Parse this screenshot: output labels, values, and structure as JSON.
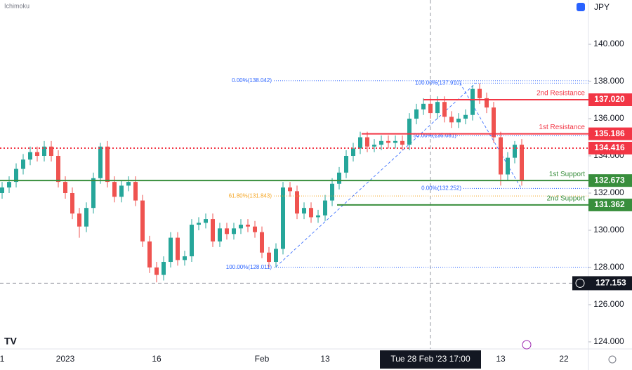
{
  "chart_data": {
    "type": "candlestick",
    "indicator": "Ichimoku",
    "symbol": "JPY",
    "up_color": "#26a69a",
    "down_color": "#ef5350",
    "ylim": [
      123.62,
      142.38
    ],
    "yticks": [
      {
        "value": 124,
        "label": "124.000"
      },
      {
        "value": 126,
        "label": "126.000"
      },
      {
        "value": 128,
        "label": "128.000"
      },
      {
        "value": 130,
        "label": "130.000"
      },
      {
        "value": 132,
        "label": "132.000"
      },
      {
        "value": 134,
        "label": "134.000"
      },
      {
        "value": 136,
        "label": "136.000"
      },
      {
        "value": 138,
        "label": "138.000"
      },
      {
        "value": 140,
        "label": "140.000"
      }
    ],
    "categories": [
      "1",
      null,
      null,
      null,
      null,
      null,
      null,
      null,
      null,
      "2023",
      null,
      null,
      null,
      null,
      null,
      null,
      null,
      null,
      null,
      null,
      null,
      null,
      "16",
      null,
      null,
      null,
      null,
      null,
      null,
      null,
      null,
      null,
      null,
      null,
      null,
      null,
      null,
      "Feb",
      null,
      null,
      null,
      null,
      null,
      null,
      null,
      null,
      "13",
      null,
      null,
      null,
      null,
      null,
      null,
      null,
      null,
      null,
      null,
      null,
      null,
      null,
      null,
      "Tue 28 Feb '23  17:00",
      null,
      null,
      null,
      null,
      null,
      null,
      null,
      null,
      null,
      "13",
      null,
      null,
      null,
      null,
      null,
      null,
      null,
      null,
      "22",
      null,
      null,
      null
    ],
    "open": [
      132.0,
      132.3,
      132.6,
      133.3,
      133.8,
      134.2,
      134.0,
      134.5,
      134.0,
      132.6,
      132.0,
      130.9,
      130.2,
      131.2,
      132.8,
      134.5,
      132.6,
      131.8,
      132.4,
      132.6,
      131.6,
      129.4,
      128.0,
      127.6,
      128.3,
      129.6,
      128.4,
      128.6,
      130.3,
      130.4,
      130.6,
      129.4,
      130.1,
      129.8,
      130.1,
      130.3,
      130.2,
      129.9,
      128.8,
      128.3,
      129.0,
      132.3,
      132.1,
      130.9,
      131.2,
      130.7,
      130.8,
      131.6,
      132.5,
      133.1,
      134.0,
      134.4,
      135.0,
      134.5,
      134.6,
      134.8,
      134.7,
      134.8,
      134.6,
      136.0,
      136.5,
      136.8,
      136.3,
      136.9,
      136.1,
      135.8,
      136.0,
      136.2,
      137.6,
      137.1,
      136.6,
      135.0,
      133.0,
      133.9,
      134.6,
      null,
      null,
      null,
      null,
      null,
      null,
      null,
      null,
      null
    ],
    "high": [
      132.6,
      132.9,
      133.6,
      134.1,
      134.5,
      134.5,
      134.8,
      134.8,
      134.3,
      132.9,
      132.3,
      131.2,
      131.5,
      133.1,
      134.7,
      134.8,
      132.9,
      132.7,
      132.9,
      132.9,
      131.9,
      129.7,
      128.3,
      128.6,
      129.9,
      129.9,
      128.9,
      130.6,
      130.7,
      130.9,
      130.9,
      130.4,
      130.4,
      130.4,
      130.6,
      130.6,
      130.5,
      130.2,
      129.1,
      129.3,
      132.6,
      132.6,
      132.4,
      131.5,
      131.5,
      131.1,
      131.9,
      132.8,
      133.4,
      134.3,
      134.7,
      135.3,
      135.3,
      134.9,
      135.1,
      135.1,
      135.1,
      135.1,
      136.3,
      136.8,
      137.1,
      137.1,
      137.2,
      137.2,
      136.4,
      136.3,
      136.5,
      137.8,
      137.9,
      137.4,
      136.9,
      135.3,
      134.2,
      134.8,
      134.9,
      null,
      null,
      null,
      null,
      null,
      null,
      null,
      null,
      null
    ],
    "low": [
      131.7,
      132.0,
      132.3,
      133.0,
      133.5,
      133.7,
      133.7,
      133.7,
      132.3,
      131.7,
      130.6,
      129.6,
      129.9,
      130.9,
      132.5,
      132.3,
      131.5,
      131.5,
      132.1,
      131.3,
      129.1,
      127.7,
      127.2,
      127.3,
      128.0,
      128.1,
      128.1,
      128.3,
      130.0,
      130.1,
      129.1,
      129.1,
      129.5,
      129.5,
      129.8,
      129.9,
      129.6,
      128.5,
      128.0,
      128.0,
      128.7,
      131.8,
      130.6,
      130.6,
      130.4,
      130.4,
      130.5,
      131.3,
      132.2,
      132.8,
      133.7,
      134.1,
      134.2,
      134.2,
      134.3,
      134.4,
      134.4,
      134.3,
      134.3,
      135.7,
      136.2,
      136.0,
      136.0,
      135.8,
      135.5,
      135.5,
      135.7,
      135.9,
      136.8,
      136.3,
      134.7,
      132.4,
      132.7,
      133.6,
      132.4,
      null,
      null,
      null,
      null,
      null,
      null,
      null,
      null,
      null
    ],
    "close": [
      132.3,
      132.6,
      133.3,
      133.8,
      134.2,
      134.0,
      134.5,
      134.0,
      132.6,
      132.0,
      130.9,
      130.2,
      131.2,
      132.8,
      134.5,
      132.6,
      131.8,
      132.4,
      132.6,
      131.6,
      129.4,
      128.0,
      127.6,
      128.3,
      129.6,
      128.4,
      128.6,
      130.3,
      130.4,
      130.6,
      129.4,
      130.1,
      129.8,
      130.1,
      130.3,
      130.2,
      129.9,
      128.8,
      128.3,
      129.0,
      132.3,
      132.1,
      130.9,
      131.2,
      130.7,
      130.8,
      131.6,
      132.5,
      133.1,
      134.0,
      134.4,
      135.0,
      134.5,
      134.6,
      134.8,
      134.7,
      134.8,
      134.6,
      136.0,
      136.5,
      136.8,
      136.3,
      136.9,
      136.1,
      135.8,
      136.0,
      136.2,
      137.6,
      137.1,
      136.6,
      135.0,
      133.0,
      133.9,
      134.6,
      132.7,
      null,
      null,
      null,
      null,
      null,
      null,
      null,
      null,
      null
    ],
    "levels": [
      {
        "name": "2nd Resistance",
        "value": 137.02,
        "label": "137.020",
        "color": "#f23645",
        "style": "solid"
      },
      {
        "name": "1st Resistance",
        "value": 135.186,
        "label": "135.186",
        "color": "#f23645",
        "style": "solid"
      },
      {
        "value": 134.416,
        "label": "134.416",
        "color": "#f23645",
        "style": "dotted"
      },
      {
        "name": "1st Support",
        "value": 132.673,
        "label": "132.673",
        "color": "#388e3c",
        "style": "solid"
      },
      {
        "name": "2nd Support",
        "value": 131.362,
        "label": "131.362",
        "color": "#388e3c",
        "style": "solid"
      }
    ],
    "fib_levels": [
      {
        "text": "0.00%(138.042)",
        "value": 138.042,
        "color": "#2962ff"
      },
      {
        "text": "100.00%(128.011)",
        "value": 128.011,
        "color": "#2962ff"
      },
      {
        "text": "61.80%(131.843)",
        "value": 131.843,
        "color": "#f5a623"
      },
      {
        "text": "0.00%(132.252)",
        "value": 132.252,
        "color": "#2962ff"
      },
      {
        "text": "100.00%(137.910)",
        "value": 137.91,
        "color": "#2962ff"
      },
      {
        "text": "50.00%(135.081)",
        "value": 135.081,
        "color": "#2962ff"
      }
    ],
    "crosshair": {
      "value": 127.153,
      "label": "127.153"
    }
  }
}
